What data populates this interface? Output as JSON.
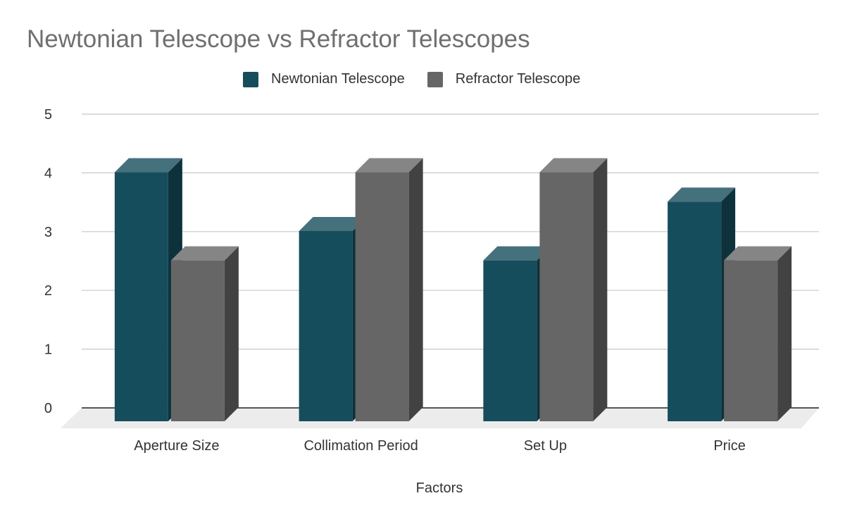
{
  "chart_data": {
    "type": "bar",
    "title": "Newtonian Telescope vs Refractor Telescopes",
    "xlabel": "Factors",
    "ylabel": "",
    "categories": [
      "Aperture Size",
      "Collimation Period",
      "Set Up",
      "Price"
    ],
    "series": [
      {
        "name": "Newtonian Telescope",
        "values": [
          4.25,
          3.25,
          2.75,
          3.75
        ],
        "color": "#164d5c"
      },
      {
        "name": "Refractor Telescope",
        "values": [
          2.75,
          4.25,
          4.25,
          2.75
        ],
        "color": "#666666"
      }
    ],
    "ylim": [
      0,
      5
    ],
    "yticks": [
      "0",
      "1",
      "2",
      "3",
      "4",
      "5"
    ],
    "grid": true,
    "legend_position": "top",
    "style": "3d"
  }
}
